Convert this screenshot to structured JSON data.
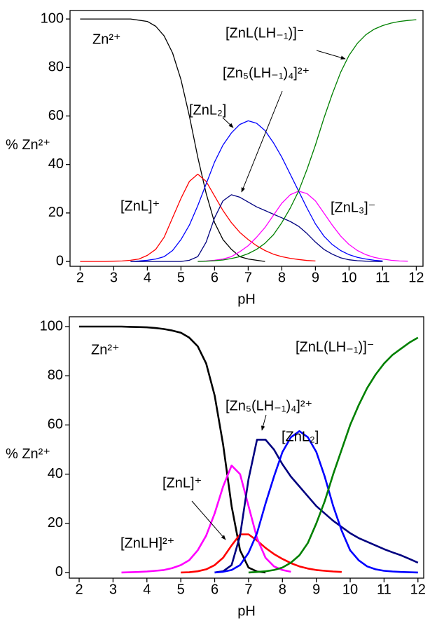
{
  "chart_data": [
    {
      "type": "line",
      "xlabel": "pH",
      "ylabel": "% Zn²⁺",
      "xlim": [
        1.7,
        12.2
      ],
      "ylim": [
        -2,
        103.5
      ],
      "xticks": [
        2,
        3,
        4,
        5,
        6,
        7,
        8,
        9,
        10,
        11,
        12
      ],
      "yticks": [
        0,
        20,
        40,
        60,
        80,
        100
      ],
      "x": [
        2,
        2.25,
        2.5,
        2.75,
        3,
        3.25,
        3.5,
        3.75,
        4,
        4.25,
        4.5,
        4.75,
        5,
        5.25,
        5.5,
        5.75,
        6,
        6.25,
        6.5,
        6.75,
        7,
        7.25,
        7.5,
        7.75,
        8,
        8.25,
        8.5,
        8.75,
        9,
        9.25,
        9.5,
        9.75,
        10,
        10.25,
        10.5,
        10.75,
        11,
        11.25,
        11.5,
        11.75,
        12
      ],
      "series": [
        {
          "name": "Zn²⁺",
          "color": "#000000",
          "values": [
            100,
            100,
            100,
            100,
            100,
            100,
            100,
            99.5,
            99,
            97,
            93,
            86,
            75,
            60,
            43,
            28,
            16,
            9,
            5,
            2,
            1,
            0.5,
            0,
            null,
            null,
            null,
            null,
            null,
            null,
            null,
            null,
            null,
            null,
            null,
            null,
            null,
            null,
            null,
            null,
            null,
            null
          ]
        },
        {
          "name": "[ZnL]⁺",
          "color": "#ff0000",
          "values": [
            0,
            0,
            0,
            0,
            0.1,
            0.2,
            0.5,
            1,
            2.5,
            5,
            10,
            18,
            26,
            33,
            36,
            33,
            27,
            21,
            16,
            12,
            9,
            6.5,
            4.5,
            3,
            2,
            1.3,
            0.8,
            0.4,
            0.2,
            null,
            null,
            null,
            null,
            null,
            null,
            null,
            null,
            null,
            null,
            null,
            null
          ]
        },
        {
          "name": "[ZnL₂]",
          "color": "#0000ff",
          "values": [
            null,
            null,
            null,
            null,
            null,
            null,
            0,
            0.2,
            0.5,
            1,
            2,
            4.5,
            9,
            15,
            23,
            32,
            41,
            48,
            53,
            56.5,
            58,
            57,
            54,
            49,
            43,
            36,
            29,
            22,
            15.5,
            10.5,
            7,
            4.5,
            2.8,
            1.7,
            1,
            0.5,
            0.2,
            null,
            null,
            null,
            null
          ]
        },
        {
          "name": "[Zn₅(LH₋₁)₄]²⁺",
          "color": "#000080",
          "values": [
            null,
            null,
            null,
            null,
            null,
            null,
            0,
            0,
            0,
            0,
            0,
            0,
            0,
            0.5,
            2,
            8,
            18,
            25,
            27.5,
            26.5,
            24.5,
            22.5,
            21,
            19.5,
            18,
            16.5,
            14.5,
            11.5,
            8,
            5,
            3,
            1.5,
            0.7,
            0.3,
            0.1,
            0,
            0,
            null,
            null,
            null,
            null
          ]
        },
        {
          "name": "[ZnL₃]⁻",
          "color": "#ff00ff",
          "values": [
            null,
            null,
            null,
            null,
            null,
            null,
            null,
            null,
            null,
            null,
            null,
            null,
            null,
            null,
            0,
            0.2,
            0.5,
            1,
            2,
            4,
            6.5,
            10,
            14,
            19,
            24,
            27.5,
            29,
            28,
            25,
            20,
            15,
            10.5,
            7,
            4.5,
            2.8,
            1.7,
            1,
            0.5,
            0.2,
            0.1,
            null
          ]
        },
        {
          "name": "[ZnL(LH₋₁)]⁻",
          "color": "#008000",
          "values": [
            null,
            null,
            null,
            null,
            null,
            null,
            null,
            null,
            null,
            null,
            null,
            null,
            null,
            null,
            0,
            0.1,
            0.3,
            0.6,
            1.2,
            2,
            3.2,
            5,
            7.5,
            11,
            16,
            22,
            29,
            38,
            48,
            59,
            69,
            78,
            85,
            90,
            93.5,
            95.8,
            97.3,
            98.3,
            99,
            99.4,
            99.7
          ]
        }
      ]
    },
    {
      "type": "line",
      "xlabel": "pH",
      "ylabel": "% Zn²⁺",
      "xlim": [
        1.71,
        12.17
      ],
      "ylim": [
        -2.3,
        104
      ],
      "xticks": [
        2,
        3,
        4,
        5,
        6,
        7,
        8,
        9,
        10,
        11,
        12
      ],
      "yticks": [
        0,
        20,
        40,
        60,
        80,
        100
      ],
      "x": [
        2,
        2.25,
        2.5,
        2.75,
        3,
        3.25,
        3.5,
        3.75,
        4,
        4.25,
        4.5,
        4.75,
        5,
        5.25,
        5.5,
        5.75,
        6,
        6.25,
        6.5,
        6.75,
        7,
        7.25,
        7.5,
        7.75,
        8,
        8.25,
        8.5,
        8.75,
        9,
        9.25,
        9.5,
        9.75,
        10,
        10.25,
        10.5,
        10.75,
        11,
        11.25,
        11.5,
        11.75,
        12
      ],
      "series": [
        {
          "name": "Zn²⁺",
          "color": "#000000",
          "values": [
            100,
            100,
            100,
            100,
            100,
            100,
            99.9,
            99.8,
            99.7,
            99.4,
            99,
            98.4,
            97.5,
            95.5,
            92,
            85,
            72,
            52,
            27,
            9,
            2,
            0.4,
            0,
            null,
            null,
            null,
            null,
            null,
            null,
            null,
            null,
            null,
            null,
            null,
            null,
            null,
            null,
            null,
            null,
            null,
            null
          ]
        },
        {
          "name": "[ZnLH]²⁺",
          "color": "#ff0000",
          "values": [
            null,
            null,
            null,
            null,
            null,
            null,
            null,
            null,
            null,
            null,
            null,
            null,
            0,
            0.1,
            0.5,
            1.3,
            3,
            6,
            11,
            15.5,
            15.5,
            13,
            10,
            7.5,
            5.5,
            3.8,
            2.5,
            1.6,
            1,
            0.7,
            0.4,
            0.2,
            null,
            null,
            null,
            null,
            null,
            null,
            null,
            null,
            null
          ]
        },
        {
          "name": "[ZnL]⁺",
          "color": "#ff00ff",
          "values": [
            null,
            null,
            null,
            null,
            null,
            0,
            0.1,
            0.2,
            0.4,
            0.7,
            1,
            1.8,
            3,
            5,
            9,
            15,
            24,
            35,
            43.5,
            40,
            27,
            14,
            6,
            2.5,
            1,
            0.3,
            null,
            null,
            null,
            null,
            null,
            null,
            null,
            null,
            null,
            null,
            null,
            null,
            null,
            null,
            null
          ]
        },
        {
          "name": "[Zn₅(LH₋₁)₄]²⁺",
          "color": "#000080",
          "values": [
            null,
            null,
            null,
            null,
            null,
            null,
            null,
            null,
            null,
            null,
            null,
            null,
            null,
            null,
            null,
            null,
            0,
            0.5,
            3,
            15,
            38,
            54,
            54,
            50,
            44,
            39,
            35,
            31,
            27,
            24,
            21,
            18.5,
            16,
            14,
            12.5,
            11,
            9.5,
            8.2,
            7,
            5.5,
            4
          ]
        },
        {
          "name": "[ZnL₂]",
          "color": "#0000ff",
          "values": [
            null,
            null,
            null,
            null,
            null,
            null,
            null,
            null,
            null,
            null,
            null,
            null,
            null,
            null,
            null,
            null,
            0,
            0.3,
            1,
            3,
            8,
            16,
            28,
            39,
            49,
            55,
            57.5,
            55,
            49,
            39,
            27,
            17,
            9,
            5,
            2.5,
            1.3,
            0.7,
            0.4,
            0.2,
            0.1,
            0
          ]
        },
        {
          "name": "[ZnL(LH₋₁)]⁻",
          "color": "#008000",
          "values": [
            null,
            null,
            null,
            null,
            null,
            null,
            null,
            null,
            null,
            null,
            null,
            null,
            null,
            null,
            null,
            null,
            null,
            null,
            null,
            null,
            0,
            0.2,
            0.5,
            1,
            2,
            4,
            7,
            12,
            20,
            29,
            40,
            50,
            60,
            68,
            75,
            80.5,
            85,
            88.5,
            91,
            93.5,
            95.5
          ]
        }
      ]
    }
  ]
}
